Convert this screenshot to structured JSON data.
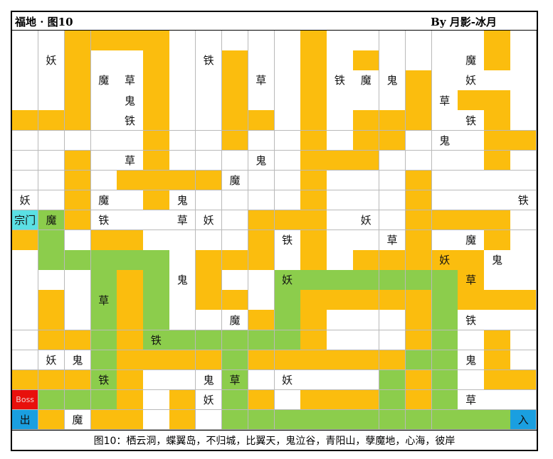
{
  "header": {
    "title": "福地 · 图10",
    "author": "By 月影-冰月"
  },
  "footer": {
    "caption": "图10：栖云洞，蝶翼岛，不归城，比翼天，鬼泣谷，青阳山，孽魔地，心海，彼岸"
  },
  "colors": {
    "orange": "#fbbd0e",
    "green": "#8ccd4c",
    "white": "#ffffff",
    "cyan": "#5be0e4",
    "red": "#e8100c",
    "blue": "#1a9fe0"
  },
  "legend_codes": {
    "W": "white",
    "O": "orange",
    "G": "green",
    "C": "cyan",
    "R": "red",
    "B": "blue"
  },
  "map": {
    "columns": 20,
    "rows": [
      {
        "colors": [
          "W",
          "W",
          "O",
          "O",
          "O",
          "O",
          "W",
          "W",
          "W",
          "W",
          "W",
          "O",
          "W",
          "W",
          "W",
          "W",
          "W",
          "W",
          "O",
          "W"
        ],
        "labels": [
          "",
          "",
          "",
          "",
          "",
          "",
          "",
          "",
          "",
          "",
          "",
          "",
          "",
          "",
          "",
          "",
          "",
          "",
          "",
          ""
        ]
      },
      {
        "colors": [
          "W",
          "W",
          "O",
          "W",
          "W",
          "O",
          "W",
          "W",
          "O",
          "W",
          "W",
          "O",
          "W",
          "O",
          "W",
          "W",
          "W",
          "W",
          "O",
          "W"
        ],
        "labels": [
          "",
          "妖",
          "",
          "",
          "",
          "",
          "",
          "铁",
          "",
          "",
          "",
          "",
          "",
          "",
          "",
          "",
          "",
          "魔",
          "",
          ""
        ]
      },
      {
        "colors": [
          "W",
          "W",
          "O",
          "W",
          "W",
          "O",
          "W",
          "W",
          "O",
          "W",
          "W",
          "O",
          "W",
          "W",
          "W",
          "O",
          "W",
          "W",
          "W",
          "W"
        ],
        "labels": [
          "",
          "",
          "",
          "魔",
          "草",
          "",
          "",
          "",
          "",
          "草",
          "",
          "",
          "铁",
          "魔",
          "鬼",
          "",
          "",
          "妖",
          "",
          ""
        ]
      },
      {
        "colors": [
          "W",
          "W",
          "O",
          "W",
          "W",
          "O",
          "W",
          "W",
          "O",
          "W",
          "W",
          "O",
          "W",
          "W",
          "W",
          "O",
          "W",
          "O",
          "O",
          "W"
        ],
        "labels": [
          "",
          "",
          "",
          "",
          "鬼",
          "",
          "",
          "",
          "",
          "",
          "",
          "",
          "",
          "",
          "",
          "",
          "草",
          "",
          "",
          ""
        ]
      },
      {
        "colors": [
          "O",
          "O",
          "O",
          "W",
          "W",
          "O",
          "W",
          "W",
          "O",
          "O",
          "W",
          "O",
          "W",
          "O",
          "O",
          "O",
          "W",
          "W",
          "O",
          "W"
        ],
        "labels": [
          "",
          "",
          "",
          "",
          "铁",
          "",
          "",
          "",
          "",
          "",
          "",
          "",
          "",
          "",
          "",
          "",
          "",
          "铁",
          "",
          ""
        ]
      },
      {
        "colors": [
          "W",
          "W",
          "W",
          "W",
          "W",
          "O",
          "W",
          "W",
          "O",
          "W",
          "W",
          "O",
          "W",
          "O",
          "O",
          "W",
          "W",
          "W",
          "O",
          "O"
        ],
        "labels": [
          "",
          "",
          "",
          "",
          "",
          "",
          "",
          "",
          "",
          "",
          "",
          "",
          "",
          "",
          "",
          "",
          "鬼",
          "",
          "",
          ""
        ]
      },
      {
        "colors": [
          "W",
          "W",
          "O",
          "W",
          "W",
          "O",
          "W",
          "W",
          "W",
          "W",
          "W",
          "O",
          "O",
          "O",
          "W",
          "W",
          "W",
          "W",
          "O",
          "W"
        ],
        "labels": [
          "",
          "",
          "",
          "",
          "草",
          "",
          "",
          "",
          "",
          "鬼",
          "",
          "",
          "",
          "",
          "",
          "",
          "",
          "",
          "",
          ""
        ]
      },
      {
        "colors": [
          "W",
          "W",
          "O",
          "W",
          "O",
          "O",
          "O",
          "O",
          "W",
          "W",
          "W",
          "O",
          "W",
          "W",
          "W",
          "O",
          "W",
          "W",
          "W",
          "W"
        ],
        "labels": [
          "",
          "",
          "",
          "",
          "",
          "",
          "",
          "",
          "魔",
          "",
          "",
          "",
          "",
          "",
          "",
          "",
          "",
          "",
          "",
          ""
        ]
      },
      {
        "colors": [
          "W",
          "W",
          "O",
          "W",
          "W",
          "O",
          "W",
          "W",
          "W",
          "W",
          "W",
          "O",
          "W",
          "W",
          "W",
          "O",
          "W",
          "W",
          "W",
          "W"
        ],
        "labels": [
          "妖",
          "",
          "",
          "魔",
          "",
          "",
          "鬼",
          "",
          "",
          "",
          "",
          "",
          "",
          "",
          "",
          "",
          "",
          "",
          "",
          "铁"
        ]
      },
      {
        "colors": [
          "C",
          "G",
          "O",
          "W",
          "W",
          "W",
          "W",
          "W",
          "W",
          "O",
          "O",
          "O",
          "W",
          "W",
          "W",
          "O",
          "O",
          "O",
          "O",
          "W"
        ],
        "labels": [
          "宗门",
          "魔",
          "",
          "铁",
          "",
          "",
          "草",
          "妖",
          "",
          "",
          "",
          "",
          "",
          "妖",
          "",
          "",
          "",
          "",
          "",
          ""
        ]
      },
      {
        "colors": [
          "O",
          "G",
          "W",
          "O",
          "O",
          "W",
          "W",
          "W",
          "W",
          "O",
          "W",
          "O",
          "W",
          "W",
          "W",
          "O",
          "W",
          "W",
          "O",
          "W"
        ],
        "labels": [
          "",
          "",
          "",
          "",
          "",
          "",
          "",
          "",
          "",
          "",
          "铁",
          "",
          "",
          "",
          "草",
          "",
          "",
          "魔",
          "",
          ""
        ]
      },
      {
        "colors": [
          "W",
          "G",
          "G",
          "G",
          "G",
          "G",
          "W",
          "O",
          "O",
          "O",
          "W",
          "O",
          "W",
          "O",
          "O",
          "O",
          "O",
          "O",
          "W",
          "W"
        ],
        "labels": [
          "",
          "",
          "",
          "",
          "",
          "",
          "",
          "",
          "",
          "",
          "",
          "",
          "",
          "",
          "",
          "",
          "妖",
          "",
          "鬼",
          ""
        ]
      },
      {
        "colors": [
          "W",
          "W",
          "W",
          "G",
          "O",
          "G",
          "W",
          "O",
          "W",
          "W",
          "G",
          "G",
          "G",
          "G",
          "G",
          "G",
          "G",
          "O",
          "W",
          "W"
        ],
        "labels": [
          "",
          "",
          "",
          "",
          "",
          "",
          "鬼",
          "",
          "",
          "",
          "妖",
          "",
          "",
          "",
          "",
          "",
          "",
          "草",
          "",
          ""
        ]
      },
      {
        "colors": [
          "W",
          "O",
          "W",
          "G",
          "O",
          "G",
          "W",
          "O",
          "O",
          "W",
          "G",
          "O",
          "O",
          "O",
          "O",
          "O",
          "G",
          "O",
          "O",
          "O"
        ],
        "labels": [
          "",
          "",
          "",
          "草",
          "",
          "",
          "",
          "",
          "",
          "",
          "",
          "",
          "",
          "",
          "",
          "",
          "",
          "",
          "",
          ""
        ]
      },
      {
        "colors": [
          "W",
          "O",
          "W",
          "G",
          "O",
          "G",
          "W",
          "W",
          "W",
          "O",
          "G",
          "O",
          "W",
          "W",
          "W",
          "O",
          "G",
          "W",
          "W",
          "W"
        ],
        "labels": [
          "",
          "",
          "",
          "",
          "",
          "",
          "",
          "",
          "魔",
          "",
          "",
          "",
          "",
          "",
          "",
          "",
          "",
          "铁",
          "",
          ""
        ]
      },
      {
        "colors": [
          "W",
          "O",
          "O",
          "G",
          "O",
          "G",
          "G",
          "G",
          "G",
          "G",
          "G",
          "O",
          "W",
          "W",
          "W",
          "O",
          "G",
          "W",
          "O",
          "W"
        ],
        "labels": [
          "",
          "",
          "",
          "",
          "",
          "铁",
          "",
          "",
          "",
          "",
          "",
          "",
          "",
          "",
          "",
          "",
          "",
          "",
          "",
          ""
        ]
      },
      {
        "colors": [
          "W",
          "W",
          "W",
          "G",
          "O",
          "O",
          "O",
          "O",
          "G",
          "O",
          "O",
          "O",
          "O",
          "O",
          "O",
          "G",
          "G",
          "W",
          "O",
          "W"
        ],
        "labels": [
          "",
          "妖",
          "鬼",
          "",
          "",
          "",
          "",
          "",
          "",
          "",
          "",
          "",
          "",
          "",
          "",
          "",
          "",
          "鬼",
          "",
          ""
        ]
      },
      {
        "colors": [
          "O",
          "O",
          "O",
          "G",
          "O",
          "W",
          "W",
          "W",
          "G",
          "W",
          "W",
          "W",
          "W",
          "W",
          "G",
          "O",
          "G",
          "W",
          "O",
          "O"
        ],
        "labels": [
          "",
          "",
          "",
          "铁",
          "",
          "",
          "",
          "鬼",
          "草",
          "",
          "妖",
          "",
          "",
          "",
          "",
          "",
          "",
          "",
          "",
          ""
        ]
      },
      {
        "colors": [
          "R",
          "G",
          "G",
          "G",
          "O",
          "W",
          "O",
          "W",
          "G",
          "O",
          "W",
          "O",
          "O",
          "O",
          "G",
          "O",
          "G",
          "W",
          "W",
          "W"
        ],
        "labels": [
          "Boss",
          "",
          "",
          "",
          "",
          "",
          "",
          "妖",
          "",
          "",
          "",
          "",
          "",
          "",
          "",
          "",
          "",
          "草",
          "",
          ""
        ]
      },
      {
        "colors": [
          "B",
          "O",
          "W",
          "O",
          "O",
          "W",
          "O",
          "W",
          "G",
          "G",
          "G",
          "G",
          "G",
          "G",
          "G",
          "G",
          "G",
          "G",
          "G",
          "B"
        ],
        "labels": [
          "出",
          "",
          "魔",
          "",
          "",
          "",
          "",
          "",
          "",
          "",
          "",
          "",
          "",
          "",
          "",
          "",
          "",
          "",
          "",
          "入"
        ]
      }
    ]
  },
  "watermark": ""
}
